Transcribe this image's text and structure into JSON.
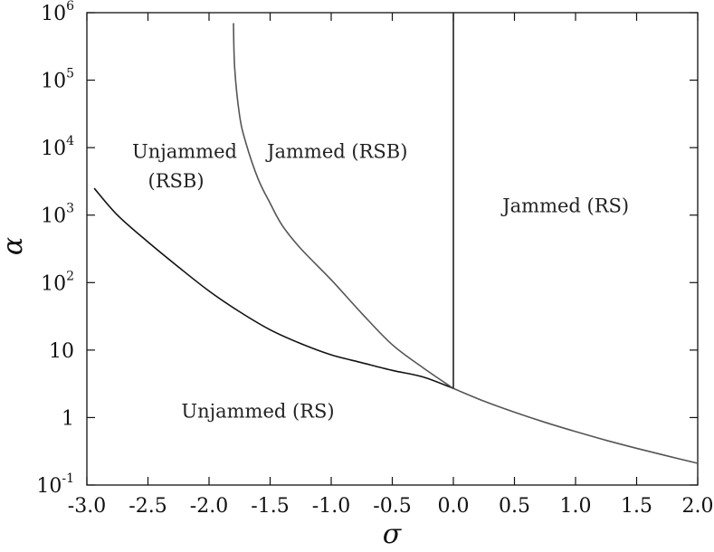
{
  "chart_data": {
    "type": "line",
    "title": "",
    "xlabel": "σ",
    "ylabel": "α",
    "xlim": [
      -3.0,
      2.0
    ],
    "ylim": [
      0.1,
      1000000
    ],
    "yscale": "log",
    "grid": false,
    "legend": "none",
    "x_ticks": [
      {
        "value": -3.0,
        "label": "-3.0"
      },
      {
        "value": -2.5,
        "label": "-2.5"
      },
      {
        "value": -2.0,
        "label": "-2.0"
      },
      {
        "value": -1.5,
        "label": "-1.5"
      },
      {
        "value": -1.0,
        "label": "-1.0"
      },
      {
        "value": -0.5,
        "label": "-0.5"
      },
      {
        "value": 0.0,
        "label": "0.0"
      },
      {
        "value": 0.5,
        "label": "0.5"
      },
      {
        "value": 1.0,
        "label": "1.0"
      },
      {
        "value": 1.5,
        "label": "1.5"
      },
      {
        "value": 2.0,
        "label": "2.0"
      }
    ],
    "y_ticks": [
      {
        "value": 0.1,
        "base": "10",
        "exp": "-1"
      },
      {
        "value": 1,
        "base": "1",
        "exp": ""
      },
      {
        "value": 10,
        "base": "10",
        "exp": ""
      },
      {
        "value": 100,
        "base": "10",
        "exp": "2"
      },
      {
        "value": 1000,
        "base": "10",
        "exp": "3"
      },
      {
        "value": 10000,
        "base": "10",
        "exp": "4"
      },
      {
        "value": 100000,
        "base": "10",
        "exp": "5"
      },
      {
        "value": 1000000,
        "base": "10",
        "exp": "6"
      }
    ],
    "series": [
      {
        "color": "#111111",
        "x": [
          -2.94,
          -2.75,
          -2.5,
          -2.25,
          -2.0,
          -1.75,
          -1.5,
          -1.25,
          -1.0,
          -0.75,
          -0.5,
          -0.25,
          0.0
        ],
        "y": [
          2500,
          1000,
          400,
          170,
          75,
          37,
          20,
          12.5,
          8.5,
          6.5,
          5.0,
          4.0,
          2.7
        ]
      },
      {
        "color": "#555555",
        "x": [
          -1.8,
          -1.79,
          -1.75,
          -1.7,
          -1.6,
          -1.5,
          -1.4,
          -1.25,
          -1.0,
          -0.75,
          -0.5,
          -0.25,
          0.0
        ],
        "y": [
          700000,
          150000,
          30000,
          12000,
          3500,
          1500,
          700,
          320,
          110,
          35,
          12,
          5.5,
          2.7
        ]
      },
      {
        "color": "#555555",
        "x": [
          0.0,
          0.25,
          0.5,
          0.75,
          1.0,
          1.25,
          1.5,
          1.75,
          2.0
        ],
        "y": [
          2.7,
          1.75,
          1.2,
          0.85,
          0.62,
          0.46,
          0.35,
          0.27,
          0.21
        ]
      },
      {
        "color": "#222222",
        "x": [
          0.0,
          0.0
        ],
        "y": [
          2.7,
          1000000
        ]
      }
    ],
    "annotations": [
      {
        "text": "Unjammed",
        "x": -2.2,
        "y": 7000
      },
      {
        "text": "(RSB)",
        "x": -2.27,
        "y": 2600
      },
      {
        "text": "Jammed (RSB)",
        "x": -0.95,
        "y": 7000
      },
      {
        "text": "Jammed (RS)",
        "x": 0.92,
        "y": 1100
      },
      {
        "text": "Unjammed (RS)",
        "x": -1.6,
        "y": 1.0
      }
    ]
  }
}
